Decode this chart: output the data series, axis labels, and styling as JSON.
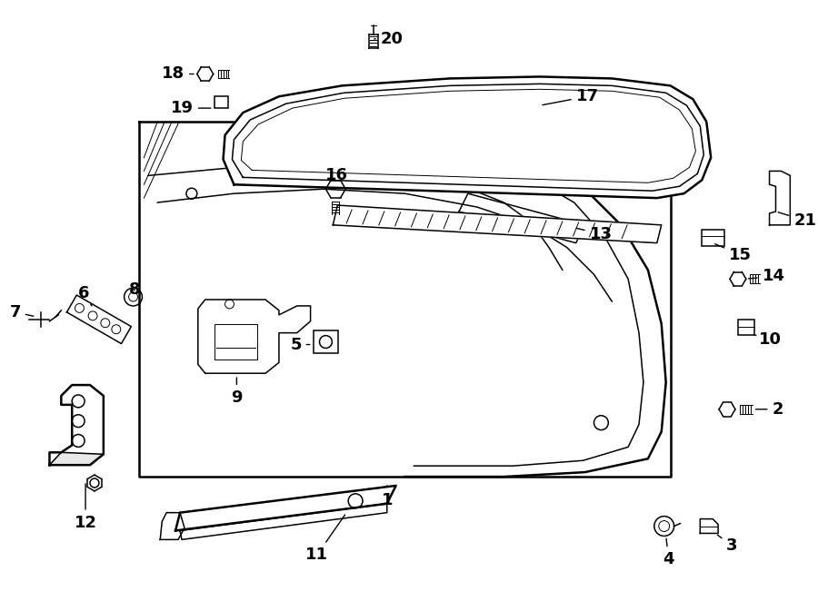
{
  "background_color": "#ffffff",
  "line_color": "#000000",
  "fig_width": 9.0,
  "fig_height": 6.62,
  "dpi": 100
}
